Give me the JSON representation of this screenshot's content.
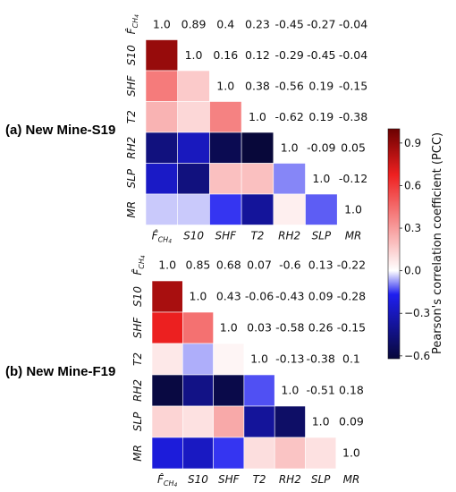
{
  "chart_data": [
    {
      "type": "heatmap",
      "panel_label": "(a) New Mine-S19",
      "labels": [
        "F̂CH4",
        "S10",
        "SHF",
        "T2",
        "RH2",
        "SLP",
        "MR"
      ],
      "upper_text": [
        [
          "1.0",
          "0.89",
          "0.4",
          "0.23",
          "-0.45",
          "-0.27",
          "-0.04"
        ],
        [
          "1.0",
          "0.16",
          "0.12",
          "-0.29",
          "-0.45",
          "-0.04"
        ],
        [
          "1.0",
          "0.38",
          "-0.56",
          "0.19",
          "-0.15"
        ],
        [
          "1.0",
          "-0.62",
          "0.19",
          "-0.38"
        ],
        [
          "1.0",
          "-0.09",
          "0.05"
        ],
        [
          "1.0",
          "-0.12"
        ],
        [
          "1.0"
        ]
      ],
      "lower_values": [
        [],
        [
          0.89
        ],
        [
          0.4,
          0.16
        ],
        [
          0.23,
          0.12,
          0.38
        ],
        [
          -0.45,
          -0.29,
          -0.56,
          -0.62
        ],
        [
          -0.27,
          -0.45,
          0.19,
          0.19,
          -0.09
        ],
        [
          -0.04,
          -0.04,
          -0.15,
          -0.38,
          0.05,
          -0.12
        ]
      ]
    },
    {
      "type": "heatmap",
      "panel_label": "(b) New Mine-F19",
      "labels": [
        "F̂CH4",
        "S10",
        "SHF",
        "T2",
        "RH2",
        "SLP",
        "MR"
      ],
      "upper_text": [
        [
          "1.0",
          "0.85",
          "0.68",
          "0.07",
          "-0.6",
          "0.13",
          "-0.22"
        ],
        [
          "1.0",
          "0.43",
          "-0.06",
          "-0.43",
          "0.09",
          "-0.28"
        ],
        [
          "1.0",
          "0.03",
          "-0.58",
          "0.26",
          "-0.15"
        ],
        [
          "1.0",
          "-0.13",
          "-0.38",
          "0.1"
        ],
        [
          "1.0",
          "-0.51",
          "0.18"
        ],
        [
          "1.0",
          "0.09"
        ],
        [
          "1.0"
        ]
      ],
      "lower_values": [
        [],
        [
          0.85
        ],
        [
          0.68,
          0.43
        ],
        [
          0.07,
          -0.06,
          0.03
        ],
        [
          -0.6,
          -0.43,
          -0.58,
          -0.13
        ],
        [
          0.13,
          0.09,
          0.26,
          -0.38,
          -0.51
        ],
        [
          -0.22,
          -0.28,
          -0.15,
          0.1,
          0.18,
          0.09
        ]
      ]
    }
  ],
  "colorbar": {
    "label": "Pearson's correlation coefficient (PCC)",
    "ticks": [
      "0.9",
      "0.6",
      "0.3",
      "0.0",
      "−0.3",
      "−0.6"
    ],
    "tick_values": [
      0.9,
      0.6,
      0.3,
      0.0,
      -0.3,
      -0.6
    ],
    "range": [
      -0.62,
      1.0
    ],
    "colors": {
      "low": "#08083a",
      "mid_low": "#1f1ff0",
      "center": "#ffffff",
      "mid_high": "#ee2020",
      "high": "#6b0000"
    }
  }
}
